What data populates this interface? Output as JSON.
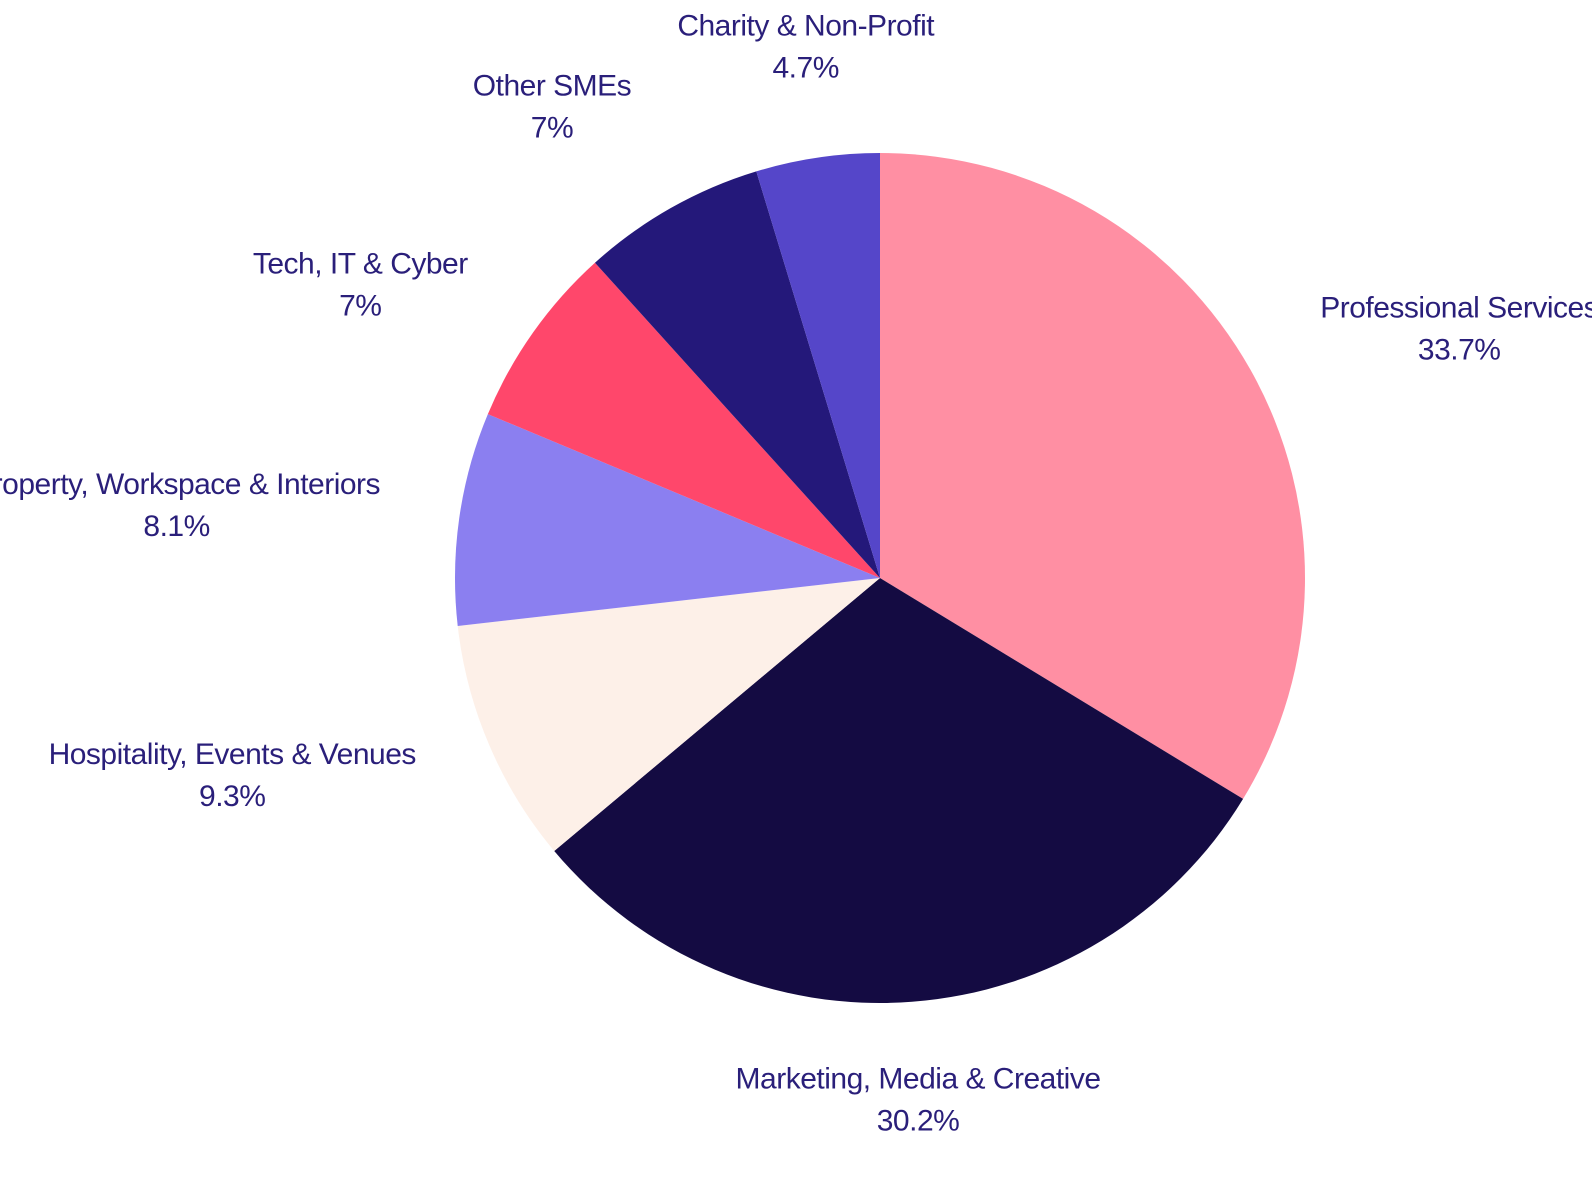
{
  "chart_data": {
    "type": "pie",
    "title": "",
    "label_color": "#2a1f7a",
    "slices": [
      {
        "label": "Professional Services",
        "value": 33.7,
        "display": "33.7%",
        "color": "#ff8fa3"
      },
      {
        "label": "Marketing, Media & Creative",
        "value": 30.2,
        "display": "30.2%",
        "color": "#140b42"
      },
      {
        "label": "Hospitality, Events & Venues",
        "value": 9.3,
        "display": "9.3%",
        "color": "#fdf0e8"
      },
      {
        "label": "Property, Workspace & Interiors",
        "value": 8.1,
        "display": "8.1%",
        "color": "#8b7ff0"
      },
      {
        "label": "Tech, IT & Cyber",
        "value": 7,
        "display": "7%",
        "color": "#ff476b"
      },
      {
        "label": "Other SMEs",
        "value": 7,
        "display": "7%",
        "color": "#24187a"
      },
      {
        "label": "Charity & Non-Profit",
        "value": 4.7,
        "display": "4.7%",
        "color": "#5546c9"
      }
    ]
  }
}
